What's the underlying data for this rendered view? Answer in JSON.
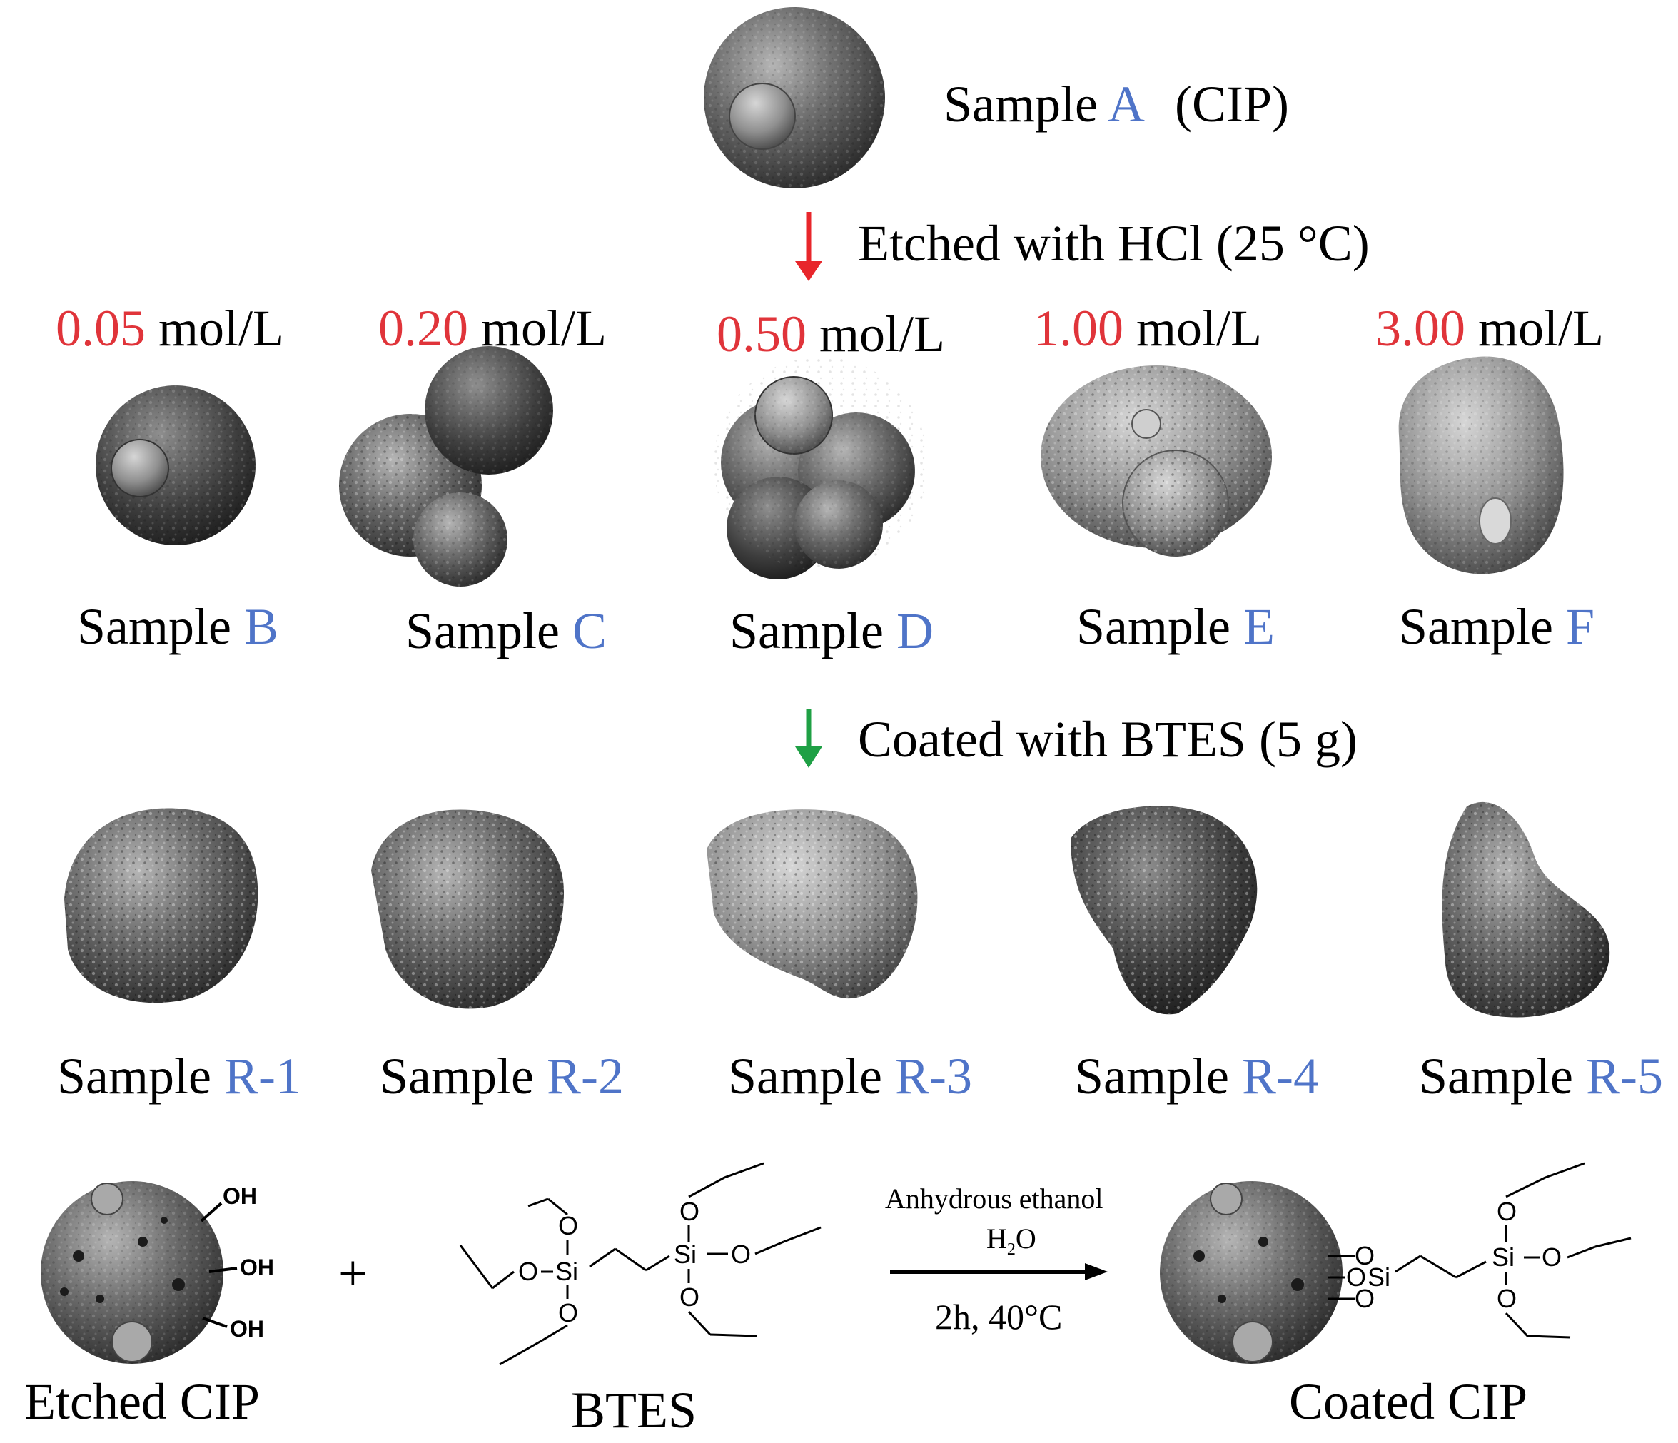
{
  "sample_a": {
    "prefix": "Sample",
    "letter": "A",
    "suffix": "(CIP)"
  },
  "step1": {
    "label": "Etched with HCl (25 °C)",
    "arrow_color": "#e8262b"
  },
  "step2": {
    "label": "Coated with BTES (5 g)",
    "arrow_color": "#1fa045"
  },
  "concentrations": [
    {
      "value": "0.05",
      "unit": "mol/L"
    },
    {
      "value": "0.20",
      "unit": "mol/L"
    },
    {
      "value": "0.50",
      "unit": "mol/L"
    },
    {
      "value": "1.00",
      "unit": "mol/L"
    },
    {
      "value": "3.00",
      "unit": "mol/L"
    }
  ],
  "etched_samples": [
    {
      "prefix": "Sample",
      "id": "B"
    },
    {
      "prefix": "Sample",
      "id": "C"
    },
    {
      "prefix": "Sample",
      "id": "D"
    },
    {
      "prefix": "Sample",
      "id": "E"
    },
    {
      "prefix": "Sample",
      "id": "F"
    }
  ],
  "coated_samples": [
    {
      "prefix": "Sample",
      "id": "R-1"
    },
    {
      "prefix": "Sample",
      "id": "R-2"
    },
    {
      "prefix": "Sample",
      "id": "R-3"
    },
    {
      "prefix": "Sample",
      "id": "R-4"
    },
    {
      "prefix": "Sample",
      "id": "R-5"
    }
  ],
  "reaction": {
    "reactant1": "Etched CIP",
    "plus": "+",
    "reactant2": "BTES",
    "product": "Coated CIP",
    "condition_solvent": "Anhydrous ethanol",
    "condition_water": "H",
    "condition_water_sub": "2",
    "condition_water_tail": "O",
    "condition_time_temp": "2h, 40°C",
    "hydroxyl": "OH",
    "silicon": "Si",
    "oxygen": "O"
  },
  "colors": {
    "label_blue": "#4f74c8",
    "concentration_red": "#e0343a"
  }
}
